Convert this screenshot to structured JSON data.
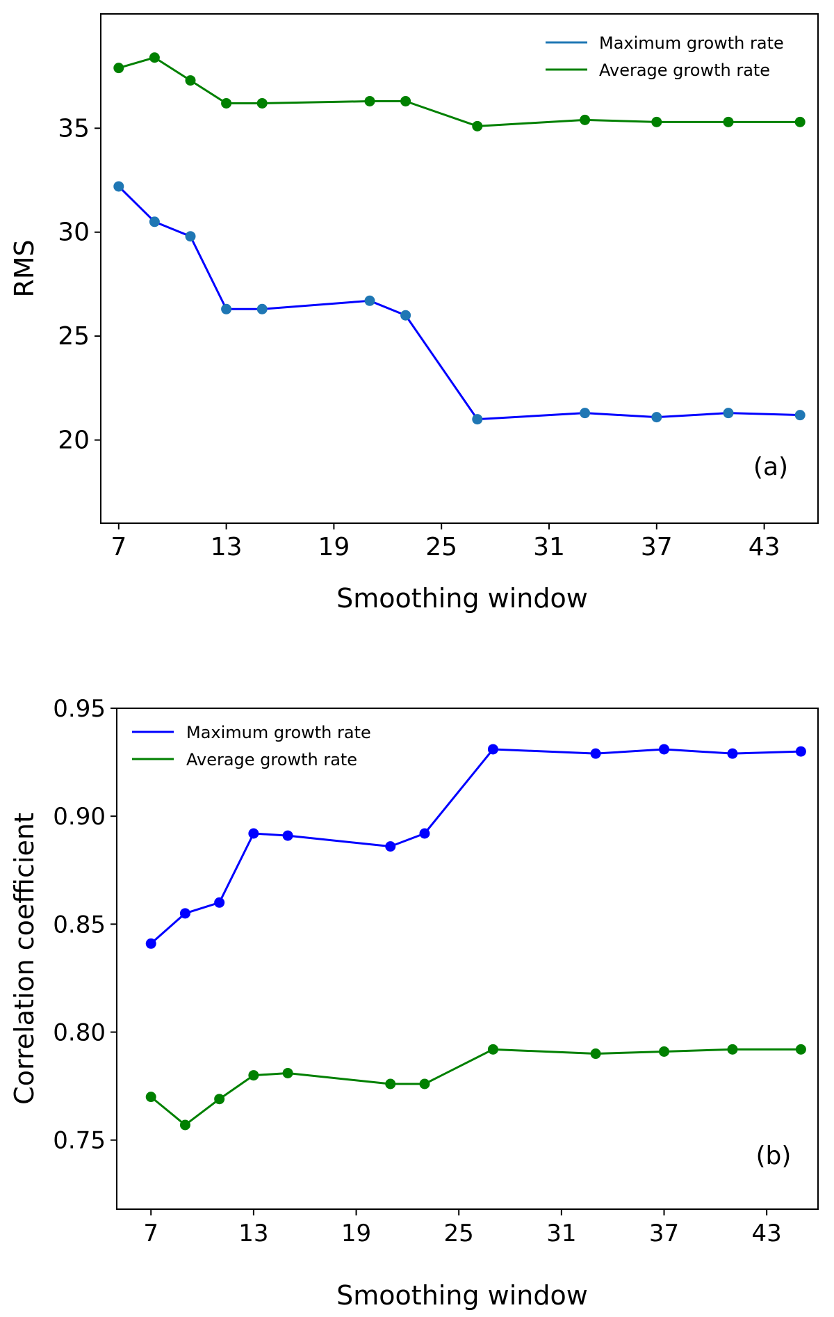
{
  "chart_data": [
    {
      "type": "line",
      "panel_label": "(a)",
      "xlabel": "Smoothing window",
      "ylabel": "RMS",
      "xlim": [
        6,
        46
      ],
      "ylim": [
        16,
        40.5
      ],
      "xticks": [
        7,
        13,
        19,
        25,
        31,
        37,
        43
      ],
      "yticks": [
        20,
        25,
        30,
        35
      ],
      "x": [
        7,
        9,
        11,
        13,
        15,
        21,
        23,
        27,
        33,
        37,
        41,
        45
      ],
      "legend": "top-right",
      "series": [
        {
          "name": "Maximum growth rate",
          "line_color": "#0000ff",
          "marker_color": "#1f77b4",
          "legend_color": "#1f77b4",
          "values": [
            32.2,
            30.5,
            29.8,
            26.3,
            26.3,
            26.7,
            26.0,
            21.0,
            21.3,
            21.1,
            21.3,
            21.2
          ]
        },
        {
          "name": "Average growth rate",
          "line_color": "#008000",
          "marker_color": "#008000",
          "legend_color": "#008000",
          "values": [
            37.9,
            38.4,
            37.3,
            36.2,
            36.2,
            36.3,
            36.3,
            35.1,
            35.4,
            35.3,
            35.3,
            35.3
          ]
        }
      ]
    },
    {
      "type": "line",
      "panel_label": "(b)",
      "xlabel": "Smoothing window",
      "ylabel": "Correlation coefficient",
      "xlim": [
        5,
        46
      ],
      "ylim": [
        0.718,
        0.95
      ],
      "xticks": [
        7,
        13,
        19,
        25,
        31,
        37,
        43
      ],
      "yticks": [
        0.75,
        0.8,
        0.85,
        0.9,
        0.95
      ],
      "ytick_labels": [
        "0.75",
        "0.80",
        "0.85",
        "0.90",
        "0.95"
      ],
      "x": [
        7,
        9,
        11,
        13,
        15,
        21,
        23,
        27,
        33,
        37,
        41,
        45
      ],
      "legend": "top-left",
      "series": [
        {
          "name": "Maximum growth rate",
          "line_color": "#0000ff",
          "marker_color": "#0000ff",
          "legend_color": "#0000ff",
          "values": [
            0.841,
            0.855,
            0.86,
            0.892,
            0.891,
            0.886,
            0.892,
            0.931,
            0.929,
            0.931,
            0.929,
            0.93
          ]
        },
        {
          "name": "Average growth rate",
          "line_color": "#008000",
          "marker_color": "#008000",
          "legend_color": "#008000",
          "values": [
            0.77,
            0.757,
            0.769,
            0.78,
            0.781,
            0.776,
            0.776,
            0.792,
            0.79,
            0.791,
            0.792,
            0.792
          ]
        }
      ]
    }
  ]
}
